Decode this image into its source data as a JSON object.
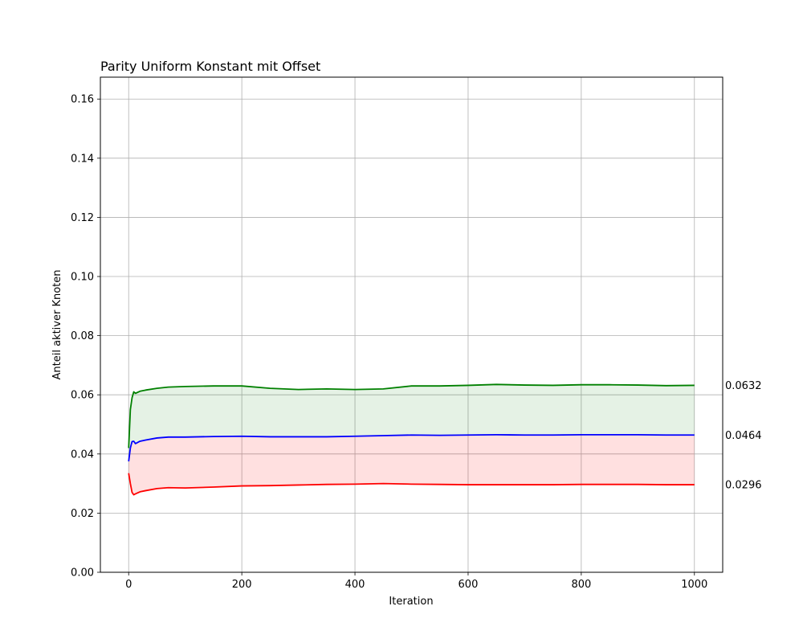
{
  "chart_data": {
    "type": "line",
    "title": "Parity Uniform Konstant mit Offset",
    "xlabel": "Iteration",
    "ylabel": "Anteil aktiver Knoten",
    "xlim": [
      -50,
      1050
    ],
    "ylim": [
      0,
      0.1674
    ],
    "xticks": [
      0,
      200,
      400,
      600,
      800,
      1000
    ],
    "yticks": [
      0.0,
      0.02,
      0.04,
      0.06,
      0.08,
      0.1,
      0.12,
      0.14,
      0.16
    ],
    "xtick_labels": [
      "0",
      "200",
      "400",
      "600",
      "800",
      "1000"
    ],
    "ytick_labels": [
      "0.00",
      "0.02",
      "0.04",
      "0.06",
      "0.08",
      "0.10",
      "0.12",
      "0.14",
      "0.16"
    ],
    "grid": true,
    "end_labels": [
      "0.0632",
      "0.0464",
      "0.0296"
    ],
    "series": [
      {
        "color": "#008000",
        "x": [
          0,
          3,
          6,
          9,
          12,
          20,
          30,
          50,
          70,
          100,
          150,
          200,
          250,
          300,
          350,
          400,
          450,
          500,
          550,
          600,
          650,
          700,
          750,
          800,
          850,
          900,
          950,
          1000
        ],
        "y": [
          0.042,
          0.055,
          0.059,
          0.061,
          0.0605,
          0.0612,
          0.0616,
          0.0622,
          0.0626,
          0.0628,
          0.063,
          0.063,
          0.0622,
          0.0618,
          0.062,
          0.0618,
          0.062,
          0.063,
          0.063,
          0.0632,
          0.0635,
          0.0633,
          0.0632,
          0.0634,
          0.0634,
          0.0633,
          0.0631,
          0.0632
        ]
      },
      {
        "color": "#0000ff",
        "x": [
          0,
          3,
          6,
          9,
          12,
          20,
          30,
          50,
          70,
          100,
          150,
          200,
          250,
          300,
          350,
          400,
          450,
          500,
          550,
          600,
          650,
          700,
          750,
          800,
          850,
          900,
          950,
          1000
        ],
        "y": [
          0.0375,
          0.042,
          0.0442,
          0.0443,
          0.0435,
          0.0443,
          0.0447,
          0.0454,
          0.0457,
          0.0457,
          0.0459,
          0.046,
          0.0458,
          0.0458,
          0.0458,
          0.046,
          0.0462,
          0.0464,
          0.0463,
          0.0464,
          0.0465,
          0.0464,
          0.0464,
          0.0465,
          0.0465,
          0.0465,
          0.0464,
          0.0464
        ]
      },
      {
        "color": "#ff0000",
        "x": [
          0,
          3,
          6,
          9,
          12,
          20,
          30,
          50,
          70,
          100,
          150,
          200,
          250,
          300,
          350,
          400,
          450,
          500,
          550,
          600,
          650,
          700,
          750,
          800,
          850,
          900,
          950,
          1000
        ],
        "y": [
          0.0335,
          0.03,
          0.027,
          0.0262,
          0.0265,
          0.0272,
          0.0276,
          0.0283,
          0.0286,
          0.0285,
          0.0288,
          0.0292,
          0.0293,
          0.0295,
          0.0297,
          0.0298,
          0.03,
          0.0298,
          0.0297,
          0.0296,
          0.0296,
          0.0296,
          0.0296,
          0.0297,
          0.0297,
          0.0297,
          0.0296,
          0.0296
        ]
      }
    ],
    "fills": [
      {
        "between": [
          0,
          1
        ],
        "color": "#008000",
        "opacity": 0.1
      },
      {
        "between": [
          1,
          2
        ],
        "color": "#ff0000",
        "opacity": 0.12
      }
    ]
  }
}
